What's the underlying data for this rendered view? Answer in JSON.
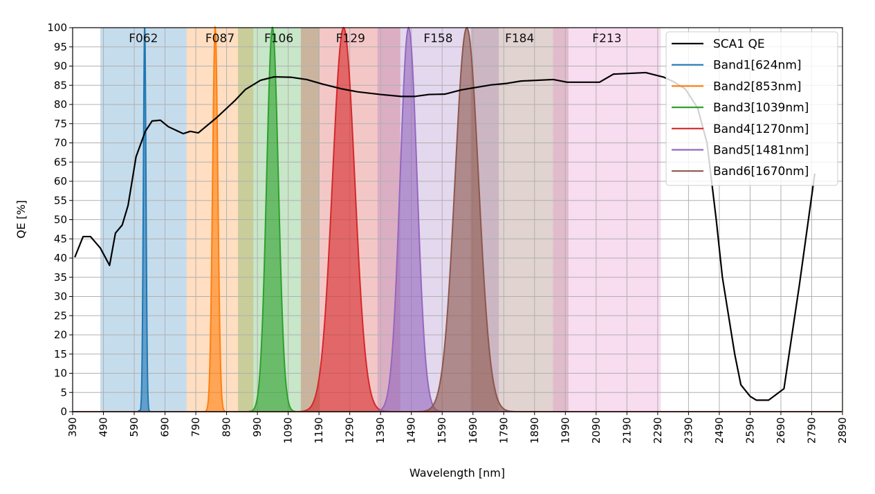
{
  "chart_data": {
    "type": "line",
    "xlabel": "Wavelength [nm]",
    "ylabel": "QE [%]",
    "xlim": [
      390,
      2890
    ],
    "ylim": [
      0,
      100
    ],
    "xticks": [
      390,
      490,
      590,
      690,
      790,
      890,
      990,
      1090,
      1190,
      1290,
      1390,
      1490,
      1590,
      1690,
      1790,
      1890,
      1990,
      2090,
      2190,
      2290,
      2390,
      2490,
      2590,
      2690,
      2790,
      2890
    ],
    "yticks": [
      0,
      5,
      10,
      15,
      20,
      25,
      30,
      35,
      40,
      45,
      50,
      55,
      60,
      65,
      70,
      75,
      80,
      85,
      90,
      95,
      100
    ],
    "grid": true,
    "legend_position": "top-right",
    "qe_series": {
      "name": "SCA1 QE",
      "color": "#000000",
      "x": [
        397,
        424,
        448,
        480,
        510,
        529,
        551,
        570,
        596,
        626,
        648,
        675,
        701,
        749,
        772,
        798,
        858,
        918,
        951,
        1000,
        1045,
        1098,
        1150,
        1202,
        1262,
        1315,
        1390,
        1457,
        1502,
        1547,
        1599,
        1652,
        1749,
        1801,
        1846,
        1951,
        1996,
        2101,
        2146,
        2251,
        2310,
        2340,
        2380,
        2420,
        2450,
        2480,
        2500,
        2520,
        2540,
        2560,
        2590,
        2610,
        2650,
        2700,
        2750,
        2800
      ],
      "y": [
        40.2,
        45.6,
        45.6,
        42.6,
        38.1,
        46.5,
        48.6,
        53.7,
        66.4,
        73,
        75.7,
        75.9,
        74.2,
        72.4,
        73,
        72.6,
        76.6,
        81.1,
        83.9,
        86.3,
        87.2,
        87.1,
        86.5,
        85.3,
        84.1,
        83.3,
        82.6,
        82.1,
        82.1,
        82.6,
        82.7,
        83.8,
        85.1,
        85.5,
        86.1,
        86.5,
        85.8,
        85.8,
        87.9,
        88.3,
        87.1,
        86,
        84,
        79,
        70,
        50,
        35,
        25,
        15,
        7,
        4,
        3,
        3,
        6,
        33,
        62
      ]
    },
    "bands": [
      {
        "name": "Band1[624nm]",
        "center_nm": 624,
        "peak": 100,
        "fwhm_nm": 10,
        "color": "#1f77b4"
      },
      {
        "name": "Band2[853nm]",
        "center_nm": 853,
        "peak": 100,
        "fwhm_nm": 20,
        "color": "#ff7f0e"
      },
      {
        "name": "Band3[1039nm]",
        "center_nm": 1039,
        "peak": 100,
        "fwhm_nm": 45,
        "color": "#2ca02c"
      },
      {
        "name": "Band4[1270nm]",
        "center_nm": 1270,
        "peak": 100,
        "fwhm_nm": 85,
        "color": "#d62728"
      },
      {
        "name": "Band5[1481nm]",
        "center_nm": 1481,
        "peak": 100,
        "fwhm_nm": 65,
        "color": "#9467bd"
      },
      {
        "name": "Band6[1670nm]",
        "center_nm": 1670,
        "peak": 100,
        "fwhm_nm": 90,
        "color": "#8c564b"
      }
    ],
    "filters": [
      {
        "label": "F062",
        "start_nm": 480,
        "end_nm": 760,
        "color": "#1f77b4"
      },
      {
        "label": "F087",
        "start_nm": 760,
        "end_nm": 977,
        "color": "#ff7f0e"
      },
      {
        "label": "F106",
        "start_nm": 927,
        "end_nm": 1192,
        "color": "#2ca02c"
      },
      {
        "label": "F129",
        "start_nm": 1131,
        "end_nm": 1454,
        "color": "#d62728"
      },
      {
        "label": "F158",
        "start_nm": 1380,
        "end_nm": 1774,
        "color": "#9467bd"
      },
      {
        "label": "F184",
        "start_nm": 1683,
        "end_nm": 2000,
        "color": "#8c564b"
      },
      {
        "label": "F213",
        "start_nm": 1950,
        "end_nm": 2300,
        "color": "#e377c2"
      }
    ]
  }
}
